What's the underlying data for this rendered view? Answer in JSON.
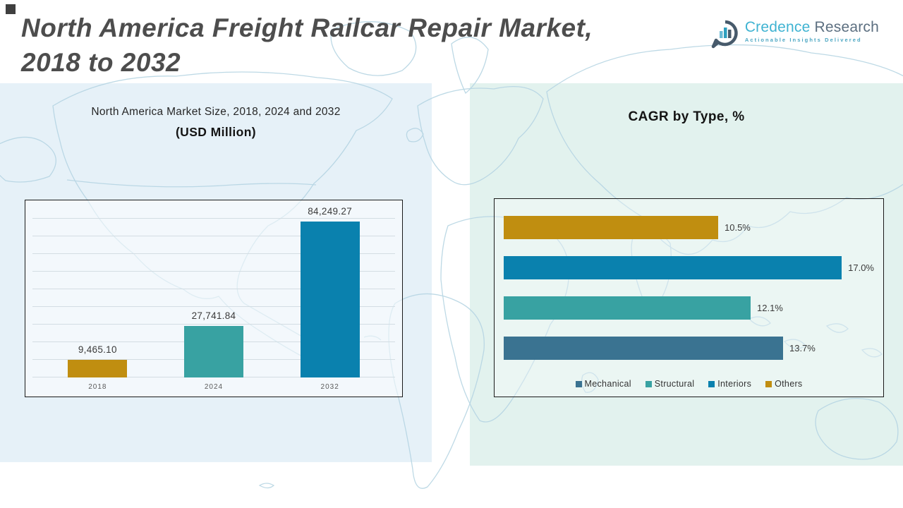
{
  "header": {
    "title_line1": "North America Freight Railcar Repair Market,",
    "title_line2": "2018 to 2032"
  },
  "logo": {
    "brand_primary": "Credence",
    "brand_secondary": "Research",
    "tagline": "Actionable Insights Delivered"
  },
  "colors": {
    "gold": "#C08E10",
    "teal": "#38A2A2",
    "blue": "#0A81AE",
    "slate_blue": "#3A7391",
    "left_panel_bg": "#E6F1F8",
    "right_panel_bg": "#E2F2EE",
    "chart_border": "#1A1A1A",
    "title_gray": "#4D4D4D"
  },
  "chart_data": [
    {
      "type": "bar",
      "orientation": "vertical",
      "title": "North America Market Size, 2018, 2024 and 2032",
      "subtitle": "(USD Million)",
      "categories": [
        "2018",
        "2024",
        "2032"
      ],
      "values": [
        9465.1,
        27741.84,
        84249.27
      ],
      "value_labels": [
        "9,465.10",
        "27,741.84",
        "84,249.27"
      ],
      "bar_colors": [
        "#C08E10",
        "#38A2A2",
        "#0A81AE"
      ],
      "ylabel": "USD Million",
      "ylim": [
        0,
        90000
      ],
      "grid": true,
      "legend_position": "none"
    },
    {
      "type": "bar",
      "orientation": "horizontal",
      "title": "CAGR by Type, %",
      "categories": [
        "Others",
        "Interiors",
        "Structural",
        "Mechanical"
      ],
      "values": [
        10.5,
        17.0,
        12.1,
        13.7
      ],
      "value_labels": [
        "10.5%",
        "17.0%",
        "12.1%",
        "13.7%"
      ],
      "bar_colors": [
        "#C08E10",
        "#0A81AE",
        "#38A2A2",
        "#3A7391"
      ],
      "xlim": [
        0,
        18
      ],
      "grid": false,
      "legend_position": "bottom",
      "legend": [
        {
          "label": "Mechanical",
          "color": "#3A7391"
        },
        {
          "label": "Structural",
          "color": "#38A2A2"
        },
        {
          "label": "Interiors",
          "color": "#0A81AE"
        },
        {
          "label": "Others",
          "color": "#C08E10"
        }
      ]
    }
  ]
}
